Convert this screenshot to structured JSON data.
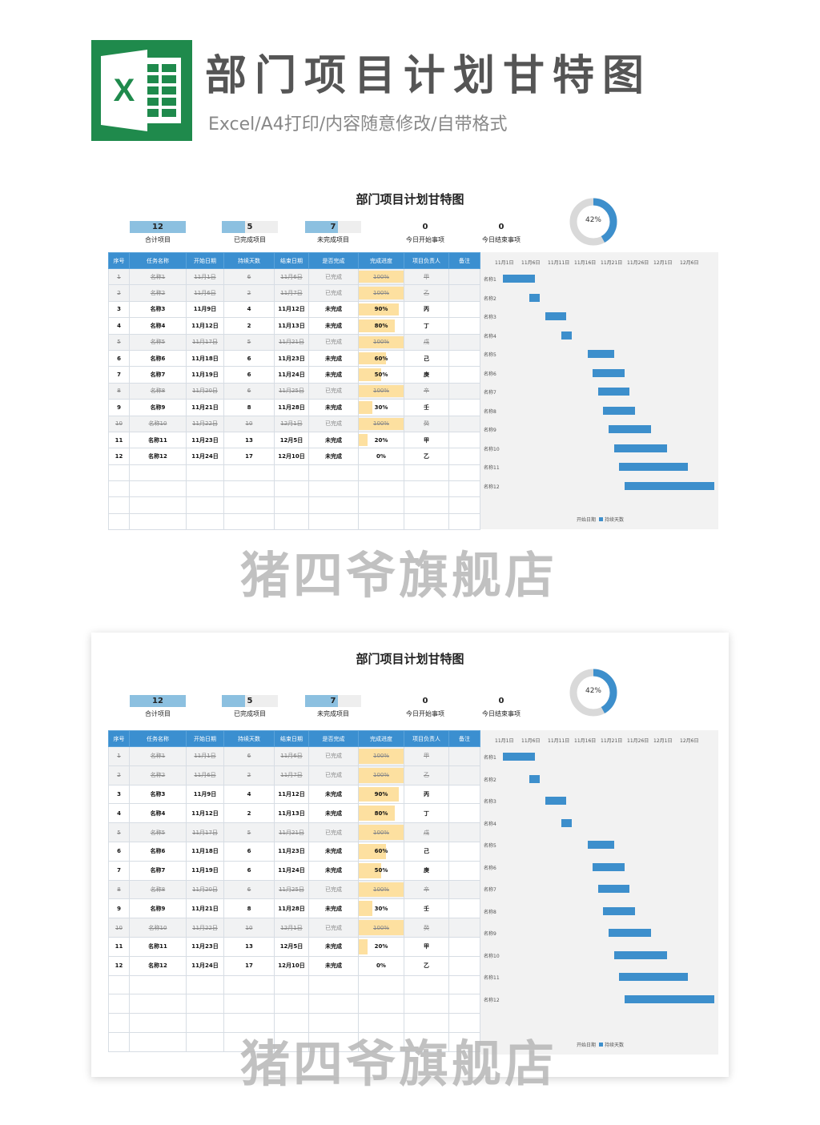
{
  "header": {
    "title": "部门项目计划甘特图",
    "subtitle": "Excel/A4打印/内容随意修改/自带格式",
    "logo_letter": "X"
  },
  "sheet": {
    "title": "部门项目计划甘特图",
    "stats": [
      {
        "value": "12",
        "label": "合计项目",
        "fill": 1.0
      },
      {
        "value": "5",
        "label": "已完成项目",
        "fill": 0.42
      },
      {
        "value": "7",
        "label": "未完成项目",
        "fill": 0.58
      },
      {
        "value": "0",
        "label": "今日开始事项",
        "fill": 0
      },
      {
        "value": "0",
        "label": "今日结束事项",
        "fill": 0
      }
    ],
    "donut": {
      "percent": "42%",
      "value": 0.42
    },
    "columns": [
      "序号",
      "任务名称",
      "开始日期",
      "持续天数",
      "结束日期",
      "是否完成",
      "完成进度",
      "项目负责人",
      "备注"
    ],
    "rows": [
      {
        "no": "1",
        "name": "名称1",
        "start": "11月1日",
        "days": "6",
        "end": "11月6日",
        "status": "已完成",
        "progress": "100%",
        "progress_value": 1.0,
        "owner": "甲",
        "done": true
      },
      {
        "no": "2",
        "name": "名称2",
        "start": "11月6日",
        "days": "2",
        "end": "11月7日",
        "status": "已完成",
        "progress": "100%",
        "progress_value": 1.0,
        "owner": "乙",
        "done": true
      },
      {
        "no": "3",
        "name": "名称3",
        "start": "11月9日",
        "days": "4",
        "end": "11月12日",
        "status": "未完成",
        "progress": "90%",
        "progress_value": 0.9,
        "owner": "丙",
        "done": false
      },
      {
        "no": "4",
        "name": "名称4",
        "start": "11月12日",
        "days": "2",
        "end": "11月13日",
        "status": "未完成",
        "progress": "80%",
        "progress_value": 0.8,
        "owner": "丁",
        "done": false
      },
      {
        "no": "5",
        "name": "名称5",
        "start": "11月17日",
        "days": "5",
        "end": "11月21日",
        "status": "已完成",
        "progress": "100%",
        "progress_value": 1.0,
        "owner": "戊",
        "done": true
      },
      {
        "no": "6",
        "name": "名称6",
        "start": "11月18日",
        "days": "6",
        "end": "11月23日",
        "status": "未完成",
        "progress": "60%",
        "progress_value": 0.6,
        "owner": "己",
        "done": false
      },
      {
        "no": "7",
        "name": "名称7",
        "start": "11月19日",
        "days": "6",
        "end": "11月24日",
        "status": "未完成",
        "progress": "50%",
        "progress_value": 0.5,
        "owner": "庚",
        "done": false
      },
      {
        "no": "8",
        "name": "名称8",
        "start": "11月20日",
        "days": "6",
        "end": "11月25日",
        "status": "已完成",
        "progress": "100%",
        "progress_value": 1.0,
        "owner": "辛",
        "done": true
      },
      {
        "no": "9",
        "name": "名称9",
        "start": "11月21日",
        "days": "8",
        "end": "11月28日",
        "status": "未完成",
        "progress": "30%",
        "progress_value": 0.3,
        "owner": "壬",
        "done": false
      },
      {
        "no": "10",
        "name": "名称10",
        "start": "11月22日",
        "days": "10",
        "end": "12月1日",
        "status": "已完成",
        "progress": "100%",
        "progress_value": 1.0,
        "owner": "癸",
        "done": true
      },
      {
        "no": "11",
        "name": "名称11",
        "start": "11月23日",
        "days": "13",
        "end": "12月5日",
        "status": "未完成",
        "progress": "20%",
        "progress_value": 0.2,
        "owner": "甲",
        "done": false
      },
      {
        "no": "12",
        "name": "名称12",
        "start": "11月24日",
        "days": "17",
        "end": "12月10日",
        "status": "未完成",
        "progress": "0%",
        "progress_value": 0,
        "owner": "乙",
        "done": false
      }
    ],
    "empty_rows": 4,
    "gantt": {
      "ticks": [
        "11月1日",
        "11月6日",
        "11月11日",
        "11月16日",
        "11月21日",
        "11月26日",
        "12月1日",
        "12月6日"
      ],
      "labels": [
        "名称1",
        "名称2",
        "名称3",
        "名称4",
        "名称5",
        "名称6",
        "名称7",
        "名称8",
        "名称9",
        "名称10",
        "名称11",
        "名称12"
      ],
      "start_day": [
        0,
        5,
        8,
        11,
        16,
        17,
        18,
        19,
        20,
        21,
        22,
        23
      ],
      "duration": [
        6,
        2,
        4,
        2,
        5,
        6,
        6,
        6,
        8,
        10,
        13,
        17
      ],
      "legend_start": "开始日期",
      "legend_duration": "持续天数",
      "bar_color": "#3d8fcc"
    }
  },
  "watermark": "猪四爷旗舰店",
  "colors": {
    "header_blue": "#3b8fd0",
    "stat_fill": "#8cc0e0",
    "progress": "#fde0a0",
    "logo_green": "#1f8a4c"
  }
}
